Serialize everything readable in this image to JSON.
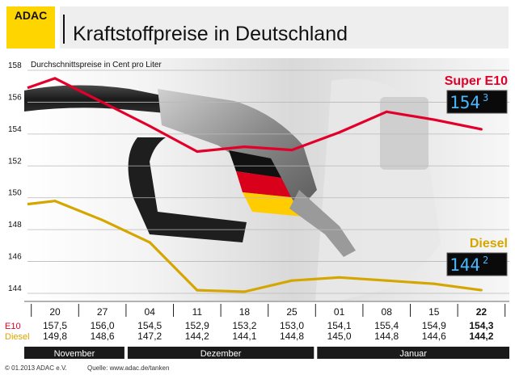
{
  "header": {
    "brand": "ADAC",
    "title": "Kraftstoffpreise in Deutschland"
  },
  "footer": {
    "copyright": "© 01.2013  ADAC e.V.",
    "source": "Quelle: www.adac.de/tanken"
  },
  "colors": {
    "brand_yellow": "#ffd500",
    "e10_line": "#e2002a",
    "diesel_line": "#d6a600",
    "month_bar": "#1a1a1a",
    "pump_display": "#0a0a0a",
    "pump_digits": "#49b6ff"
  },
  "chart_data": {
    "type": "line",
    "ylabel": "Durchschnittspreise in Cent pro Liter",
    "ylim": [
      144,
      158
    ],
    "y_ticks": [
      144,
      146,
      148,
      150,
      152,
      154,
      156,
      158
    ],
    "categories": [
      "20",
      "27",
      "04",
      "11",
      "18",
      "25",
      "01",
      "08",
      "15",
      "22"
    ],
    "months": [
      {
        "label": "November",
        "start": 0,
        "end": 1
      },
      {
        "label": "Dezember",
        "start": 2,
        "end": 5
      },
      {
        "label": "Januar",
        "start": 6,
        "end": 9
      }
    ],
    "row_labels": {
      "e10": "E10",
      "diesel": "Diesel"
    },
    "series": [
      {
        "name": "Super E10",
        "short": "E10",
        "color": "#e2002a",
        "values": [
          157.5,
          156.0,
          154.5,
          152.9,
          153.2,
          153.0,
          154.1,
          155.4,
          154.9,
          154.3
        ],
        "labels": [
          "157,5",
          "156,0",
          "154,5",
          "152,9",
          "153,2",
          "153,0",
          "154,1",
          "155,4",
          "154,9",
          "154,3"
        ],
        "display": "154",
        "display_sup": "3",
        "leading_point": 156.9
      },
      {
        "name": "Diesel",
        "short": "Diesel",
        "color": "#d6a600",
        "values": [
          149.8,
          148.6,
          147.2,
          144.2,
          144.1,
          144.8,
          145.0,
          144.8,
          144.6,
          144.2
        ],
        "labels": [
          "149,8",
          "148,6",
          "147,2",
          "144,2",
          "144,1",
          "144,8",
          "145,0",
          "144,8",
          "144,6",
          "144,2"
        ],
        "display": "144",
        "display_sup": "2",
        "leading_point": 149.6
      }
    ]
  }
}
